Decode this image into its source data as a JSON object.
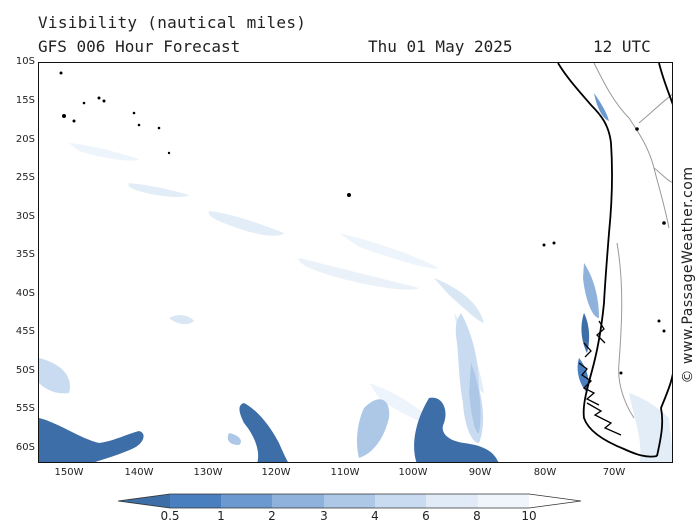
{
  "header": {
    "title": "Visibility (nautical miles)",
    "model": "GFS 006 Hour Forecast",
    "date": "Thu 01 May 2025",
    "time": "12 UTC"
  },
  "copyright": "© www.PassageWeather.com",
  "axes": {
    "lat_labels": [
      "10S",
      "15S",
      "20S",
      "25S",
      "30S",
      "35S",
      "40S",
      "45S",
      "50S",
      "55S",
      "60S"
    ],
    "lon_labels": [
      "150W",
      "140W",
      "130W",
      "120W",
      "110W",
      "100W",
      "90W",
      "80W",
      "70W"
    ]
  },
  "legend": {
    "ticks": [
      "0.5",
      "1",
      "2",
      "3",
      "4",
      "6",
      "8",
      "10"
    ],
    "colors": [
      "#3d6ea7",
      "#4a7fbf",
      "#6c99cf",
      "#8fb2dc",
      "#adc7e7",
      "#c9dbf0",
      "#e0ebf7",
      "#f0f5fb",
      "#ffffff"
    ]
  },
  "map_colors": {
    "land_outline": "#000000",
    "borders": "#999999",
    "dense": "#3d6ea7",
    "medium": "#8fb2dc",
    "light": "#c9dbf0",
    "faint": "#e3edf8"
  }
}
